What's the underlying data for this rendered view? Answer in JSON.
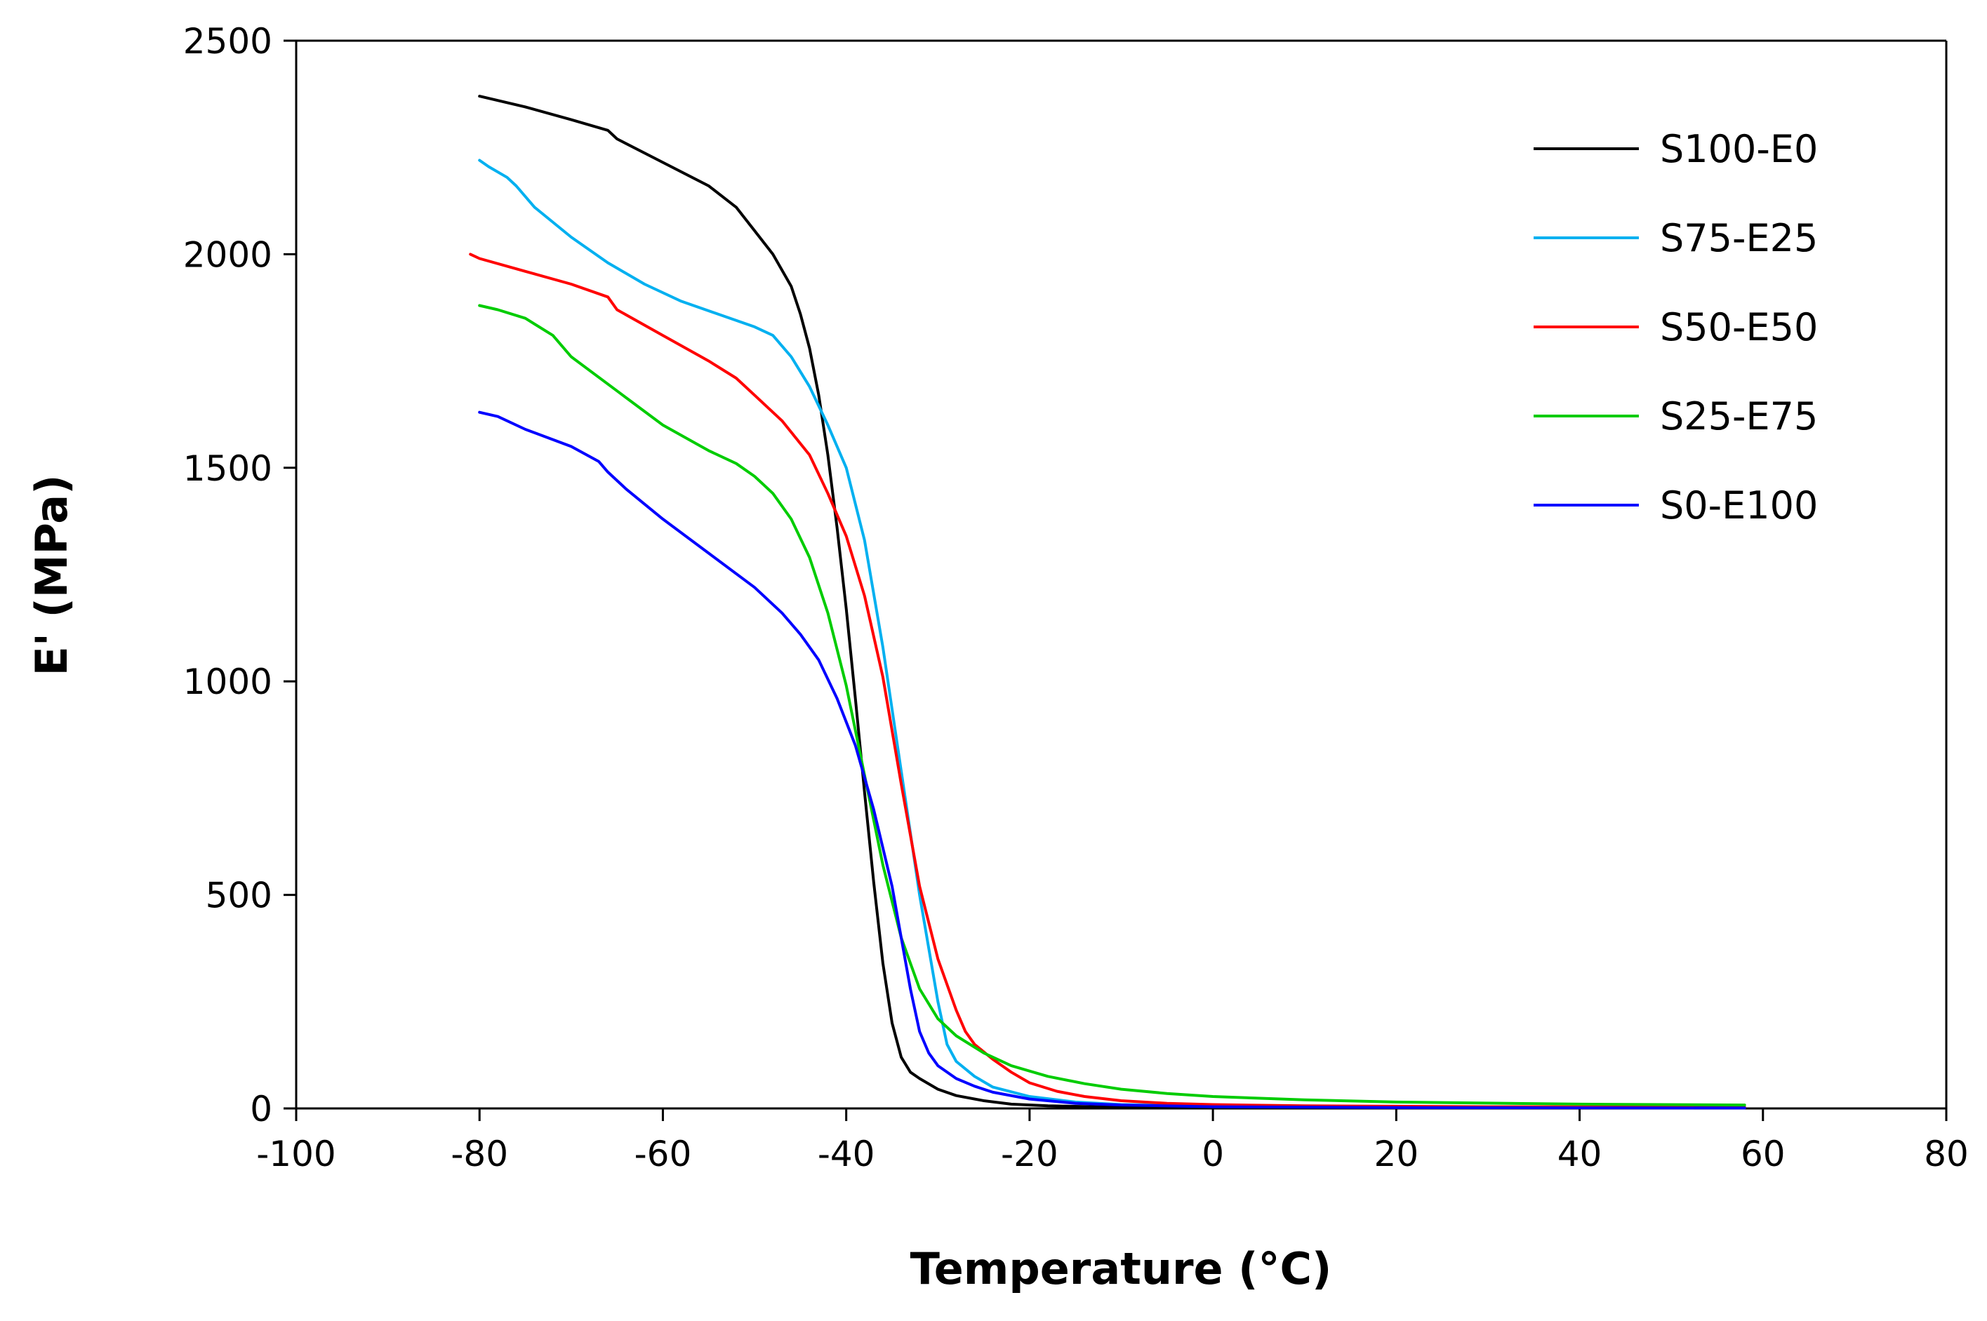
{
  "chart_data": {
    "type": "line",
    "title": "",
    "xlabel": "Temperature (°C)",
    "ylabel": "E' (MPa)",
    "xlim": [
      -100,
      80
    ],
    "ylim": [
      0,
      2500
    ],
    "xticks": [
      -100,
      -80,
      -60,
      -40,
      -20,
      0,
      20,
      40,
      60,
      80
    ],
    "yticks": [
      0,
      500,
      1000,
      1500,
      2000,
      2500
    ],
    "legend_position": "top-right",
    "grid": false,
    "series": [
      {
        "name": "S100-E0",
        "color": "#000000",
        "points": [
          [
            -80,
            2370
          ],
          [
            -75,
            2345
          ],
          [
            -70,
            2315
          ],
          [
            -66,
            2290
          ],
          [
            -65,
            2270
          ],
          [
            -60,
            2215
          ],
          [
            -55,
            2160
          ],
          [
            -52,
            2110
          ],
          [
            -50,
            2055
          ],
          [
            -48,
            2000
          ],
          [
            -46,
            1925
          ],
          [
            -45,
            1860
          ],
          [
            -44,
            1780
          ],
          [
            -43,
            1670
          ],
          [
            -42,
            1530
          ],
          [
            -41,
            1360
          ],
          [
            -40,
            1170
          ],
          [
            -39,
            960
          ],
          [
            -38,
            740
          ],
          [
            -37,
            530
          ],
          [
            -36,
            340
          ],
          [
            -35,
            200
          ],
          [
            -34,
            120
          ],
          [
            -33,
            85
          ],
          [
            -32,
            70
          ],
          [
            -30,
            45
          ],
          [
            -28,
            30
          ],
          [
            -25,
            18
          ],
          [
            -22,
            10
          ],
          [
            -18,
            6
          ],
          [
            -10,
            3
          ],
          [
            0,
            2
          ],
          [
            30,
            1
          ],
          [
            58,
            1
          ]
        ]
      },
      {
        "name": "S75-E25",
        "color": "#00B0F0",
        "points": [
          [
            -80,
            2220
          ],
          [
            -79,
            2205
          ],
          [
            -77,
            2180
          ],
          [
            -76,
            2160
          ],
          [
            -74,
            2110
          ],
          [
            -70,
            2040
          ],
          [
            -66,
            1980
          ],
          [
            -62,
            1930
          ],
          [
            -58,
            1890
          ],
          [
            -54,
            1860
          ],
          [
            -50,
            1830
          ],
          [
            -48,
            1810
          ],
          [
            -46,
            1760
          ],
          [
            -44,
            1690
          ],
          [
            -42,
            1600
          ],
          [
            -40,
            1500
          ],
          [
            -38,
            1330
          ],
          [
            -36,
            1080
          ],
          [
            -34,
            790
          ],
          [
            -32,
            500
          ],
          [
            -30,
            250
          ],
          [
            -29,
            150
          ],
          [
            -28,
            110
          ],
          [
            -26,
            75
          ],
          [
            -24,
            50
          ],
          [
            -20,
            28
          ],
          [
            -15,
            15
          ],
          [
            -10,
            9
          ],
          [
            0,
            5
          ],
          [
            20,
            3
          ],
          [
            58,
            2
          ]
        ]
      },
      {
        "name": "S50-E50",
        "color": "#FF0000",
        "points": [
          [
            -81,
            2000
          ],
          [
            -80,
            1990
          ],
          [
            -75,
            1960
          ],
          [
            -70,
            1930
          ],
          [
            -66,
            1900
          ],
          [
            -65,
            1870
          ],
          [
            -60,
            1810
          ],
          [
            -55,
            1750
          ],
          [
            -52,
            1710
          ],
          [
            -50,
            1670
          ],
          [
            -47,
            1610
          ],
          [
            -44,
            1530
          ],
          [
            -42,
            1440
          ],
          [
            -40,
            1340
          ],
          [
            -38,
            1200
          ],
          [
            -36,
            1010
          ],
          [
            -34,
            760
          ],
          [
            -32,
            520
          ],
          [
            -30,
            350
          ],
          [
            -28,
            230
          ],
          [
            -27,
            180
          ],
          [
            -26,
            150
          ],
          [
            -24,
            115
          ],
          [
            -22,
            85
          ],
          [
            -20,
            60
          ],
          [
            -17,
            40
          ],
          [
            -14,
            28
          ],
          [
            -10,
            18
          ],
          [
            -5,
            12
          ],
          [
            0,
            9
          ],
          [
            10,
            6
          ],
          [
            30,
            4
          ],
          [
            58,
            3
          ]
        ]
      },
      {
        "name": "S25-E75",
        "color": "#00CC00",
        "points": [
          [
            -80,
            1880
          ],
          [
            -78,
            1870
          ],
          [
            -75,
            1850
          ],
          [
            -72,
            1810
          ],
          [
            -70,
            1760
          ],
          [
            -65,
            1680
          ],
          [
            -60,
            1600
          ],
          [
            -55,
            1540
          ],
          [
            -52,
            1510
          ],
          [
            -50,
            1480
          ],
          [
            -48,
            1440
          ],
          [
            -46,
            1380
          ],
          [
            -44,
            1290
          ],
          [
            -42,
            1160
          ],
          [
            -40,
            990
          ],
          [
            -38,
            780
          ],
          [
            -36,
            570
          ],
          [
            -34,
            400
          ],
          [
            -32,
            280
          ],
          [
            -30,
            210
          ],
          [
            -28,
            170
          ],
          [
            -25,
            130
          ],
          [
            -22,
            100
          ],
          [
            -18,
            75
          ],
          [
            -14,
            58
          ],
          [
            -10,
            45
          ],
          [
            -5,
            35
          ],
          [
            0,
            28
          ],
          [
            10,
            20
          ],
          [
            20,
            15
          ],
          [
            40,
            10
          ],
          [
            58,
            8
          ]
        ]
      },
      {
        "name": "S0-E100",
        "color": "#0000FF",
        "points": [
          [
            -80,
            1630
          ],
          [
            -78,
            1620
          ],
          [
            -75,
            1590
          ],
          [
            -70,
            1550
          ],
          [
            -67,
            1515
          ],
          [
            -66,
            1490
          ],
          [
            -64,
            1450
          ],
          [
            -60,
            1380
          ],
          [
            -55,
            1300
          ],
          [
            -50,
            1220
          ],
          [
            -47,
            1160
          ],
          [
            -45,
            1110
          ],
          [
            -43,
            1050
          ],
          [
            -41,
            960
          ],
          [
            -39,
            850
          ],
          [
            -37,
            700
          ],
          [
            -35,
            520
          ],
          [
            -34,
            400
          ],
          [
            -33,
            280
          ],
          [
            -32,
            180
          ],
          [
            -31,
            130
          ],
          [
            -30,
            100
          ],
          [
            -28,
            70
          ],
          [
            -26,
            52
          ],
          [
            -24,
            38
          ],
          [
            -20,
            22
          ],
          [
            -15,
            12
          ],
          [
            -10,
            8
          ],
          [
            0,
            4
          ],
          [
            20,
            2
          ],
          [
            58,
            1
          ]
        ]
      }
    ]
  }
}
